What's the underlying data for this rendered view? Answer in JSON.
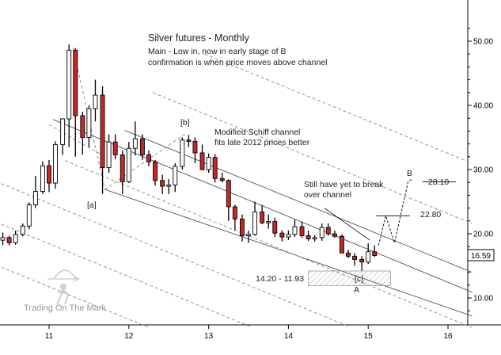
{
  "chart_data": {
    "type": "candlestick",
    "title": "Silver futures - Monthly",
    "subtitle_lines": [
      "Main - Low in, now in early stage of B",
      "confirmation is when price moves above channel"
    ],
    "x_ticks": [
      "11",
      "12",
      "13",
      "14",
      "15",
      "16"
    ],
    "x_tick_values": [
      2011,
      2012,
      2013,
      2014,
      2015,
      2016
    ],
    "y_ticks": [
      "10.00",
      "20.00",
      "30.00",
      "40.00",
      "50.00"
    ],
    "y_tick_values": [
      10,
      20,
      30,
      40,
      50
    ],
    "ylim": [
      6.5,
      53.5
    ],
    "xlim": [
      2010.4,
      2016.35
    ],
    "last_price_label": "16.59",
    "last_price": 16.59,
    "candles": [
      {
        "t": 2010.42,
        "o": 19.0,
        "h": 20.2,
        "l": 18.2,
        "c": 19.4
      },
      {
        "t": 2010.5,
        "o": 19.4,
        "h": 19.7,
        "l": 18.2,
        "c": 18.6
      },
      {
        "t": 2010.58,
        "o": 18.6,
        "h": 20.5,
        "l": 18.3,
        "c": 19.9
      },
      {
        "t": 2010.67,
        "o": 19.9,
        "h": 21.6,
        "l": 19.6,
        "c": 21.2
      },
      {
        "t": 2010.75,
        "o": 21.2,
        "h": 24.9,
        "l": 20.7,
        "c": 24.5
      },
      {
        "t": 2010.83,
        "o": 24.5,
        "h": 29.0,
        "l": 24.0,
        "c": 26.6
      },
      {
        "t": 2010.92,
        "o": 26.6,
        "h": 31.3,
        "l": 26.2,
        "c": 30.6
      },
      {
        "t": 2011.0,
        "o": 30.6,
        "h": 31.5,
        "l": 26.5,
        "c": 27.9
      },
      {
        "t": 2011.08,
        "o": 27.9,
        "h": 34.4,
        "l": 27.0,
        "c": 33.9
      },
      {
        "t": 2011.17,
        "o": 33.9,
        "h": 38.0,
        "l": 32.3,
        "c": 37.9
      },
      {
        "t": 2011.25,
        "o": 37.9,
        "h": 49.5,
        "l": 33.5,
        "c": 48.6
      },
      {
        "t": 2011.33,
        "o": 48.6,
        "h": 48.9,
        "l": 32.0,
        "c": 38.4
      },
      {
        "t": 2011.42,
        "o": 38.4,
        "h": 39.0,
        "l": 32.3,
        "c": 35.0
      },
      {
        "t": 2011.5,
        "o": 35.0,
        "h": 40.0,
        "l": 33.5,
        "c": 39.5
      },
      {
        "t": 2011.58,
        "o": 39.5,
        "h": 44.0,
        "l": 37.5,
        "c": 41.6
      },
      {
        "t": 2011.67,
        "o": 41.6,
        "h": 43.0,
        "l": 26.2,
        "c": 30.3
      },
      {
        "t": 2011.75,
        "o": 30.3,
        "h": 35.5,
        "l": 29.5,
        "c": 34.3
      },
      {
        "t": 2011.83,
        "o": 34.3,
        "h": 35.5,
        "l": 31.6,
        "c": 32.3
      },
      {
        "t": 2011.92,
        "o": 32.3,
        "h": 33.0,
        "l": 26.2,
        "c": 28.1
      },
      {
        "t": 2012.0,
        "o": 28.1,
        "h": 34.3,
        "l": 27.9,
        "c": 33.3
      },
      {
        "t": 2012.08,
        "o": 33.3,
        "h": 37.5,
        "l": 32.2,
        "c": 34.8
      },
      {
        "t": 2012.17,
        "o": 34.8,
        "h": 35.5,
        "l": 31.5,
        "c": 32.3
      },
      {
        "t": 2012.25,
        "o": 32.3,
        "h": 33.0,
        "l": 30.5,
        "c": 31.2
      },
      {
        "t": 2012.33,
        "o": 31.2,
        "h": 31.5,
        "l": 27.5,
        "c": 28.3
      },
      {
        "t": 2012.42,
        "o": 28.3,
        "h": 29.2,
        "l": 26.2,
        "c": 27.4
      },
      {
        "t": 2012.5,
        "o": 27.4,
        "h": 28.5,
        "l": 26.2,
        "c": 27.6
      },
      {
        "t": 2012.58,
        "o": 27.6,
        "h": 31.0,
        "l": 26.5,
        "c": 30.5
      },
      {
        "t": 2012.67,
        "o": 30.5,
        "h": 35.0,
        "l": 30.0,
        "c": 34.6
      },
      {
        "t": 2012.75,
        "o": 34.6,
        "h": 35.4,
        "l": 33.5,
        "c": 34.4
      },
      {
        "t": 2012.83,
        "o": 34.4,
        "h": 35.0,
        "l": 31.0,
        "c": 32.6
      },
      {
        "t": 2012.92,
        "o": 32.6,
        "h": 33.9,
        "l": 29.9,
        "c": 30.0
      },
      {
        "t": 2013.0,
        "o": 30.0,
        "h": 32.5,
        "l": 29.5,
        "c": 31.9
      },
      {
        "t": 2013.08,
        "o": 31.9,
        "h": 32.4,
        "l": 28.0,
        "c": 28.6
      },
      {
        "t": 2013.17,
        "o": 28.6,
        "h": 29.5,
        "l": 28.0,
        "c": 28.3
      },
      {
        "t": 2013.25,
        "o": 28.3,
        "h": 28.5,
        "l": 22.0,
        "c": 24.2
      },
      {
        "t": 2013.33,
        "o": 24.2,
        "h": 24.5,
        "l": 20.5,
        "c": 22.3
      },
      {
        "t": 2013.42,
        "o": 22.3,
        "h": 23.0,
        "l": 18.8,
        "c": 19.7
      },
      {
        "t": 2013.5,
        "o": 19.7,
        "h": 20.5,
        "l": 18.6,
        "c": 19.9
      },
      {
        "t": 2013.58,
        "o": 19.9,
        "h": 25.0,
        "l": 19.7,
        "c": 23.4
      },
      {
        "t": 2013.67,
        "o": 23.4,
        "h": 24.5,
        "l": 21.5,
        "c": 21.7
      },
      {
        "t": 2013.75,
        "o": 21.7,
        "h": 23.0,
        "l": 20.8,
        "c": 21.9
      },
      {
        "t": 2013.83,
        "o": 21.9,
        "h": 22.5,
        "l": 19.5,
        "c": 20.1
      },
      {
        "t": 2013.92,
        "o": 20.1,
        "h": 20.5,
        "l": 18.8,
        "c": 19.5
      },
      {
        "t": 2014.0,
        "o": 19.5,
        "h": 20.5,
        "l": 19.0,
        "c": 19.9
      },
      {
        "t": 2014.08,
        "o": 19.9,
        "h": 22.2,
        "l": 19.5,
        "c": 21.1
      },
      {
        "t": 2014.17,
        "o": 21.1,
        "h": 21.9,
        "l": 19.4,
        "c": 19.7
      },
      {
        "t": 2014.25,
        "o": 19.7,
        "h": 20.5,
        "l": 18.9,
        "c": 19.2
      },
      {
        "t": 2014.33,
        "o": 19.2,
        "h": 19.8,
        "l": 18.8,
        "c": 19.4
      },
      {
        "t": 2014.42,
        "o": 19.4,
        "h": 21.6,
        "l": 18.9,
        "c": 21.0
      },
      {
        "t": 2014.5,
        "o": 21.0,
        "h": 21.6,
        "l": 19.7,
        "c": 20.0
      },
      {
        "t": 2014.58,
        "o": 20.0,
        "h": 20.5,
        "l": 19.4,
        "c": 19.6
      },
      {
        "t": 2014.67,
        "o": 19.6,
        "h": 19.9,
        "l": 17.0,
        "c": 17.0
      },
      {
        "t": 2014.75,
        "o": 17.0,
        "h": 17.5,
        "l": 16.2,
        "c": 16.5
      },
      {
        "t": 2014.83,
        "o": 16.5,
        "h": 17.0,
        "l": 15.0,
        "c": 16.0
      },
      {
        "t": 2014.92,
        "o": 16.0,
        "h": 16.5,
        "l": 14.2,
        "c": 15.6
      },
      {
        "t": 2015.0,
        "o": 15.6,
        "h": 18.5,
        "l": 15.3,
        "c": 17.2
      },
      {
        "t": 2015.08,
        "o": 17.2,
        "h": 18.2,
        "l": 16.4,
        "c": 16.6
      }
    ],
    "annotations": {
      "wave_a": "[a]",
      "wave_b": "[b]",
      "wave_c": "[c]",
      "label_A": "A",
      "label_B": "B",
      "target_upper": "28.10",
      "target_lower": "22.80",
      "support_zone": "14.20 - 11.93",
      "schiff_note": [
        "Modified Schiff channel",
        "fits late 2012 prices better"
      ],
      "break_note": [
        "Still have yet to break",
        "over channel"
      ]
    },
    "target_upper_value": 28.1,
    "target_lower_value": 22.8,
    "support_zone_range": [
      11.93,
      14.2
    ]
  },
  "watermark": {
    "text": "Trading On The Mark",
    "icon": "archer-logo-icon"
  },
  "colors": {
    "bearish": "#c62828",
    "bullish": "#ffffff",
    "outline": "#000000",
    "channel": "#555555",
    "dashed": "#888888"
  }
}
